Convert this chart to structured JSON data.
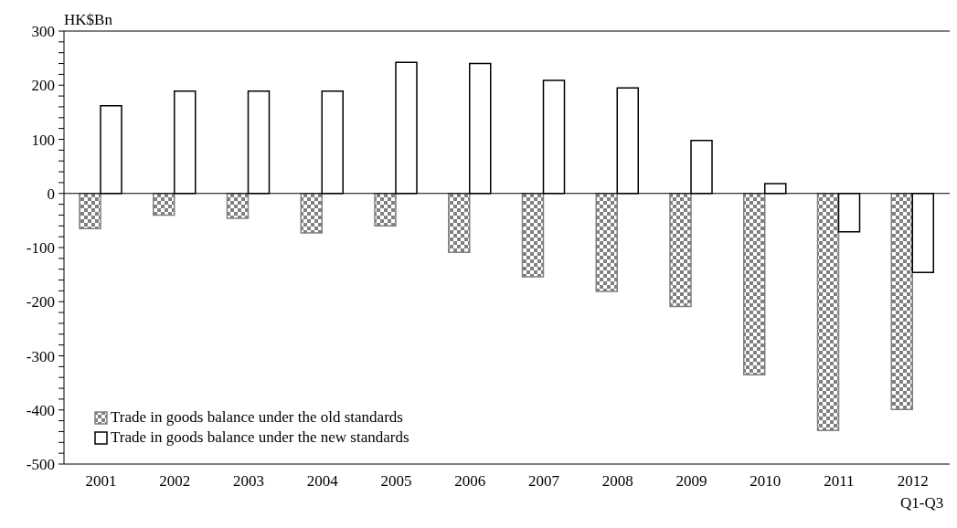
{
  "chart_data": {
    "type": "bar",
    "ylabel": "HK$Bn",
    "categories": [
      "2001",
      "2002",
      "2003",
      "2004",
      "2005",
      "2006",
      "2007",
      "2008",
      "2009",
      "2010",
      "2011",
      "2012\nQ1-Q3"
    ],
    "series": [
      {
        "name": "Trade in goods balance under the old standards",
        "color": "#808080",
        "values": [
          -65,
          -40,
          -46,
          -73,
          -60,
          -109,
          -154,
          -181,
          -209,
          -335,
          -438,
          -399
        ]
      },
      {
        "name": "Trade in goods balance under the new standards",
        "color": "#ffffff",
        "values": [
          162,
          189,
          189,
          189,
          242,
          240,
          209,
          195,
          98,
          18,
          -71,
          -146
        ]
      }
    ],
    "ylim": [
      -500,
      300
    ],
    "yticks": [
      -500,
      {
        "value": -480,
        "label": null
      },
      {
        "value": -460,
        "label": null
      },
      {
        "value": -440,
        "label": null
      },
      {
        "value": -420,
        "label": null
      },
      -400,
      {
        "value": -380,
        "label": null
      },
      {
        "value": -360,
        "label": null
      },
      {
        "value": -340,
        "label": null
      },
      {
        "value": -320,
        "label": null
      },
      -300,
      {
        "value": -280,
        "label": null
      },
      {
        "value": -260,
        "label": null
      },
      {
        "value": -240,
        "label": null
      },
      {
        "value": -220,
        "label": null
      },
      -200,
      {
        "value": -180,
        "label": null
      },
      {
        "value": -160,
        "label": null
      },
      {
        "value": -140,
        "label": null
      },
      {
        "value": -120,
        "label": null
      },
      -100,
      {
        "value": -80,
        "label": null
      },
      {
        "value": -60,
        "label": null
      },
      {
        "value": -40,
        "label": null
      },
      {
        "value": -20,
        "label": null
      },
      0,
      {
        "value": 20,
        "label": null
      },
      {
        "value": 40,
        "label": null
      },
      {
        "value": 60,
        "label": null
      },
      {
        "value": 80,
        "label": null
      },
      100,
      {
        "value": 120,
        "label": null
      },
      {
        "value": 140,
        "label": null
      },
      {
        "value": 160,
        "label": null
      },
      {
        "value": 180,
        "label": null
      },
      200,
      {
        "value": 220,
        "label": null
      },
      {
        "value": 240,
        "label": null
      },
      {
        "value": 260,
        "label": null
      },
      {
        "value": 280,
        "label": null
      },
      300
    ],
    "ref_lines": [
      {
        "axis": "y",
        "value": 0,
        "color": "#000000"
      }
    ],
    "legend": "bottom left",
    "grid": false
  }
}
